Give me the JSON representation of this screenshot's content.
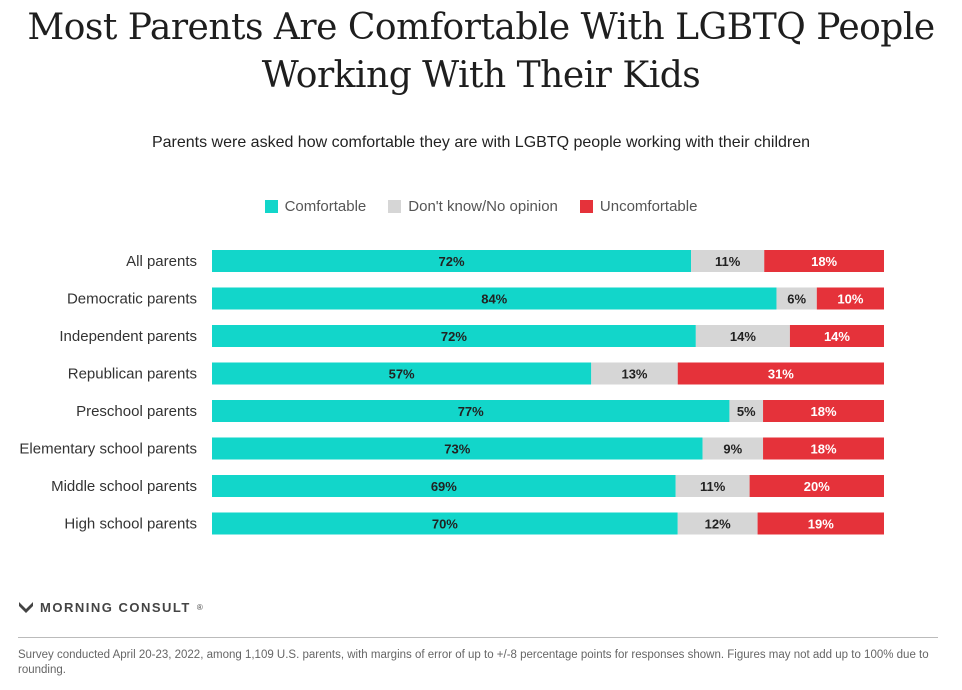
{
  "chart_data": {
    "type": "bar",
    "orientation": "horizontal",
    "stacked": true,
    "title": "Most Parents Are Comfortable With LGBTQ People Working With Their Kids",
    "subtitle": "Parents were asked how comfortable they are with LGBTQ people working with their children",
    "categories": [
      "All parents",
      "Democratic parents",
      "Independent parents",
      "Republican parents",
      "Preschool parents",
      "Elementary school parents",
      "Middle school parents",
      "High school parents"
    ],
    "series": [
      {
        "name": "Comfortable",
        "color": "#12d6ca",
        "values": [
          72,
          84,
          72,
          57,
          77,
          73,
          69,
          70
        ]
      },
      {
        "name": "Don't know/No opinion",
        "color": "#d6d6d6",
        "values": [
          11,
          6,
          14,
          13,
          5,
          9,
          11,
          12
        ]
      },
      {
        "name": "Uncomfortable",
        "color": "#e5323a",
        "values": [
          18,
          10,
          14,
          31,
          18,
          18,
          20,
          19
        ]
      }
    ],
    "value_suffix": "%",
    "legend_position": "top-center",
    "grid": false
  },
  "logo_text": "MORNING CONSULT",
  "logo_mark": "®",
  "footnote": "Survey conducted April 20-23, 2022, among 1,109 U.S. parents, with margins of error of up to +/-8 percentage points for responses shown. Figures may not add up to 100% due to rounding."
}
